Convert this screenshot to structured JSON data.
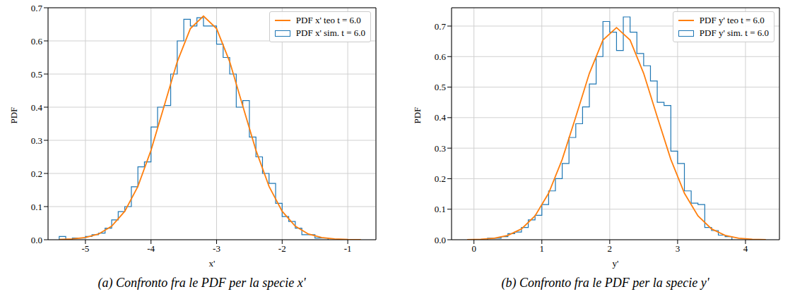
{
  "chart_data": [
    {
      "type": "histogram",
      "caption": "(a) Confronto fra le PDF per la specie x'",
      "x_label": "x'",
      "y_label": "PDF",
      "xlim": [
        -5.57,
        -0.57
      ],
      "xticks": [
        -5,
        -4,
        -3,
        -2,
        -1
      ],
      "ylim": [
        0,
        0.7
      ],
      "yticks": [
        {
          "value": 0,
          "label": "0.0"
        },
        0.1,
        0.2,
        0.3,
        0.4,
        0.5,
        0.6,
        0.7
      ],
      "grid": true,
      "legend": "upper right",
      "series": [
        {
          "name": "PDF x' teo t = 6.0",
          "color": "#ff7f0e",
          "type": "line",
          "x": [
            -5.4,
            -5.2,
            -5.0,
            -4.8,
            -4.6,
            -4.4,
            -4.2,
            -4.0,
            -3.8,
            -3.6,
            -3.4,
            -3.2,
            -3.0,
            -2.8,
            -2.6,
            -2.4,
            -2.2,
            -2.0,
            -1.8,
            -1.6,
            -1.4,
            -1.2,
            -1.0,
            -0.8
          ],
          "values": [
            0.0007,
            0.0022,
            0.0065,
            0.0172,
            0.0407,
            0.0858,
            0.161,
            0.27,
            0.403,
            0.537,
            0.637,
            0.675,
            0.637,
            0.537,
            0.403,
            0.27,
            0.161,
            0.0858,
            0.0407,
            0.0172,
            0.0065,
            0.0022,
            0.0007,
            0.0002
          ]
        },
        {
          "name": "PDF x' sim. t = 6.0",
          "color": "#1f77b4",
          "type": "step",
          "bins": [
            -5.4,
            -5.3,
            -5.2,
            -5.1,
            -5.0,
            -4.9,
            -4.8,
            -4.7,
            -4.6,
            -4.5,
            -4.4,
            -4.3,
            -4.2,
            -4.1,
            -4.0,
            -3.9,
            -3.8,
            -3.7,
            -3.6,
            -3.5,
            -3.4,
            -3.3,
            -3.2,
            -3.1,
            -3.0,
            -2.9,
            -2.8,
            -2.7,
            -2.6,
            -2.5,
            -2.4,
            -2.3,
            -2.2,
            -2.1,
            -2.0,
            -1.9,
            -1.8,
            -1.7,
            -1.6,
            -1.5,
            -1.4,
            -1.3
          ],
          "values": [
            0.01,
            0,
            0.005,
            0.005,
            0.01,
            0.015,
            0.02,
            0.035,
            0.06,
            0.085,
            0.1,
            0.16,
            0.22,
            0.235,
            0.34,
            0.4,
            0.405,
            0.5,
            0.6,
            0.665,
            0.645,
            0.67,
            0.645,
            0.645,
            0.59,
            0.55,
            0.5,
            0.4,
            0.42,
            0.31,
            0.25,
            0.2,
            0.17,
            0.11,
            0.07,
            0.055,
            0.035,
            0.015,
            0.015,
            0.005,
            0.005
          ]
        }
      ]
    },
    {
      "type": "histogram",
      "caption": "(b) Confronto fra le PDF per la specie y'",
      "x_label": "y'",
      "y_label": "PDF",
      "xlim": [
        -0.33,
        4.5
      ],
      "xticks": [
        0,
        1,
        2,
        3,
        4
      ],
      "ylim": [
        0,
        0.76
      ],
      "yticks": [
        {
          "value": 0,
          "label": "0.0"
        },
        0.1,
        0.2,
        0.3,
        0.4,
        0.5,
        0.6,
        0.7
      ],
      "grid": true,
      "legend": "upper right",
      "series": [
        {
          "name": "PDF y' teo t = 6.0",
          "color": "#ff7f0e",
          "type": "line",
          "x": [
            -0.1,
            0.1,
            0.3,
            0.5,
            0.7,
            0.9,
            1.1,
            1.3,
            1.5,
            1.7,
            1.9,
            2.1,
            2.3,
            2.5,
            2.7,
            2.9,
            3.1,
            3.3,
            3.5,
            3.7,
            3.9,
            4.1,
            4.3
          ],
          "values": [
            0.0004,
            0.0016,
            0.0051,
            0.0143,
            0.0355,
            0.0782,
            0.1524,
            0.2631,
            0.4025,
            0.545,
            0.654,
            0.695,
            0.654,
            0.545,
            0.4025,
            0.2631,
            0.1524,
            0.0782,
            0.0355,
            0.0143,
            0.0051,
            0.0016,
            0.0004
          ]
        },
        {
          "name": "PDF y' sim. t = 6.0",
          "color": "#1f77b4",
          "type": "step",
          "bins": [
            0.2,
            0.3,
            0.4,
            0.5,
            0.6,
            0.7,
            0.8,
            0.9,
            1.0,
            1.1,
            1.2,
            1.3,
            1.4,
            1.5,
            1.6,
            1.7,
            1.8,
            1.9,
            2.0,
            2.1,
            2.2,
            2.3,
            2.4,
            2.5,
            2.6,
            2.7,
            2.8,
            2.9,
            3.0,
            3.1,
            3.2,
            3.3,
            3.4,
            3.5,
            3.6,
            3.7,
            3.8
          ],
          "values": [
            0.005,
            0.005,
            0.01,
            0.02,
            0.025,
            0.04,
            0.065,
            0.08,
            0.115,
            0.16,
            0.2,
            0.25,
            0.335,
            0.38,
            0.435,
            0.51,
            0.6,
            0.715,
            0.68,
            0.62,
            0.73,
            0.68,
            0.61,
            0.57,
            0.52,
            0.45,
            0.44,
            0.29,
            0.25,
            0.16,
            0.12,
            0.115,
            0.04,
            0.03,
            0.015,
            0.01
          ]
        }
      ]
    }
  ]
}
